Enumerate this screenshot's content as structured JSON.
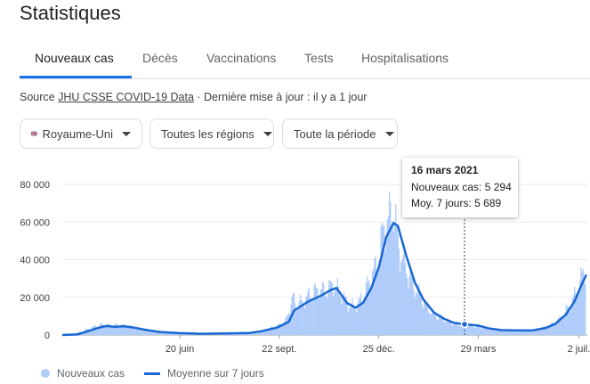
{
  "page": {
    "title": "Statistiques"
  },
  "tabs": [
    {
      "label": "Nouveaux cas"
    },
    {
      "label": "Décès"
    },
    {
      "label": "Vaccinations"
    },
    {
      "label": "Tests"
    },
    {
      "label": "Hospitalisations"
    }
  ],
  "source": {
    "prefix": "Source",
    "link": "JHU CSSE COVID-19 Data",
    "updated": " · Dernière mise à jour : il y a 1 jour"
  },
  "filters": {
    "country": "Royaume-Uni",
    "country_flag_icon": "uk-flag-icon",
    "region": "Toutes les régions",
    "period": "Toute la période"
  },
  "tooltip": {
    "date": "16 mars 2021",
    "new_cases": "Nouveaux cas: 5 294",
    "avg7": "Moy. 7 jours: 5 689"
  },
  "legend": {
    "bars": "Nouveaux cas",
    "line": "Moyenne sur 7 jours"
  },
  "colors": {
    "accent": "#1a73e8",
    "line": "#1967d2",
    "bars": "#aecbfa"
  },
  "chart_data": {
    "type": "bar",
    "ylim": [
      0,
      80000
    ],
    "yticks": [
      0,
      20000,
      40000,
      60000,
      80000
    ],
    "ytick_labels": [
      "0",
      "20 000",
      "40 000",
      "60 000",
      "80 000"
    ],
    "xlim": [
      "2020-03-01",
      "2021-07-10"
    ],
    "xticks": [
      "2020-06-20",
      "2020-09-22",
      "2020-12-25",
      "2021-03-29",
      "2021-07-02"
    ],
    "xtick_labels": [
      "20 juin",
      "22 sept.",
      "25 déc.",
      "29 mars",
      "2 juil."
    ],
    "hover_date": "2021-03-16",
    "grid": true,
    "legend_position": "bottom-left",
    "series": [
      {
        "name": "Nouveaux cas",
        "kind": "bar",
        "points": [
          [
            "2020-03-01",
            0
          ],
          [
            "2020-03-10",
            300
          ],
          [
            "2020-03-20",
            2000
          ],
          [
            "2020-04-01",
            4500
          ],
          [
            "2020-04-08",
            5500
          ],
          [
            "2020-04-15",
            5000
          ],
          [
            "2020-04-25",
            5200
          ],
          [
            "2020-05-05",
            4500
          ],
          [
            "2020-05-15",
            3300
          ],
          [
            "2020-05-25",
            2300
          ],
          [
            "2020-06-05",
            1500
          ],
          [
            "2020-06-20",
            1100
          ],
          [
            "2020-07-05",
            800
          ],
          [
            "2020-07-20",
            700
          ],
          [
            "2020-08-05",
            900
          ],
          [
            "2020-08-20",
            1100
          ],
          [
            "2020-09-01",
            1500
          ],
          [
            "2020-09-10",
            3000
          ],
          [
            "2020-09-20",
            4800
          ],
          [
            "2020-09-28",
            7500
          ],
          [
            "2020-10-05",
            20000
          ],
          [
            "2020-10-08",
            16000
          ],
          [
            "2020-10-15",
            18000
          ],
          [
            "2020-10-22",
            22000
          ],
          [
            "2020-10-29",
            24000
          ],
          [
            "2020-11-05",
            23000
          ],
          [
            "2020-11-12",
            27000
          ],
          [
            "2020-11-19",
            22000
          ],
          [
            "2020-11-26",
            16000
          ],
          [
            "2020-12-03",
            15000
          ],
          [
            "2020-12-10",
            20000
          ],
          [
            "2020-12-17",
            30000
          ],
          [
            "2020-12-24",
            38000
          ],
          [
            "2020-12-29",
            55000
          ],
          [
            "2021-01-04",
            62000
          ],
          [
            "2021-01-08",
            68000
          ],
          [
            "2021-01-12",
            48000
          ],
          [
            "2021-01-18",
            38000
          ],
          [
            "2021-01-25",
            28000
          ],
          [
            "2021-02-01",
            22000
          ],
          [
            "2021-02-08",
            15000
          ],
          [
            "2021-02-15",
            11000
          ],
          [
            "2021-02-22",
            9000
          ],
          [
            "2021-03-01",
            7000
          ],
          [
            "2021-03-08",
            5800
          ],
          [
            "2021-03-16",
            5294
          ],
          [
            "2021-03-29",
            4500
          ],
          [
            "2021-04-10",
            3000
          ],
          [
            "2021-04-25",
            2300
          ],
          [
            "2021-05-10",
            2200
          ],
          [
            "2021-05-25",
            3000
          ],
          [
            "2021-06-05",
            5000
          ],
          [
            "2021-06-15",
            9000
          ],
          [
            "2021-06-25",
            17000
          ],
          [
            "2021-07-02",
            26000
          ],
          [
            "2021-07-08",
            36000
          ]
        ]
      },
      {
        "name": "Moyenne sur 7 jours",
        "kind": "line",
        "points": [
          [
            "2020-03-01",
            0
          ],
          [
            "2020-03-15",
            300
          ],
          [
            "2020-03-25",
            2000
          ],
          [
            "2020-04-05",
            4000
          ],
          [
            "2020-04-12",
            4800
          ],
          [
            "2020-04-20",
            4300
          ],
          [
            "2020-04-28",
            4700
          ],
          [
            "2020-05-08",
            3900
          ],
          [
            "2020-05-20",
            2600
          ],
          [
            "2020-06-01",
            1600
          ],
          [
            "2020-06-20",
            1000
          ],
          [
            "2020-07-10",
            650
          ],
          [
            "2020-08-01",
            800
          ],
          [
            "2020-08-25",
            1100
          ],
          [
            "2020-09-05",
            2000
          ],
          [
            "2020-09-20",
            4000
          ],
          [
            "2020-10-01",
            7000
          ],
          [
            "2020-10-06",
            13000
          ],
          [
            "2020-10-20",
            18000
          ],
          [
            "2020-11-01",
            21000
          ],
          [
            "2020-11-10",
            24000
          ],
          [
            "2020-11-15",
            25000
          ],
          [
            "2020-11-25",
            17000
          ],
          [
            "2020-12-03",
            14500
          ],
          [
            "2020-12-10",
            17000
          ],
          [
            "2020-12-18",
            25000
          ],
          [
            "2020-12-25",
            36000
          ],
          [
            "2021-01-01",
            52000
          ],
          [
            "2021-01-08",
            59500
          ],
          [
            "2021-01-12",
            58000
          ],
          [
            "2021-01-20",
            42000
          ],
          [
            "2021-01-28",
            28000
          ],
          [
            "2021-02-05",
            19000
          ],
          [
            "2021-02-15",
            12000
          ],
          [
            "2021-02-25",
            8500
          ],
          [
            "2021-03-06",
            6500
          ],
          [
            "2021-03-16",
            5689
          ],
          [
            "2021-03-29",
            5000
          ],
          [
            "2021-04-08",
            3500
          ],
          [
            "2021-04-20",
            2600
          ],
          [
            "2021-05-05",
            2400
          ],
          [
            "2021-05-20",
            2500
          ],
          [
            "2021-06-01",
            3800
          ],
          [
            "2021-06-10",
            6000
          ],
          [
            "2021-06-20",
            11000
          ],
          [
            "2021-06-28",
            18000
          ],
          [
            "2021-07-04",
            26000
          ],
          [
            "2021-07-09",
            32000
          ]
        ]
      }
    ]
  }
}
